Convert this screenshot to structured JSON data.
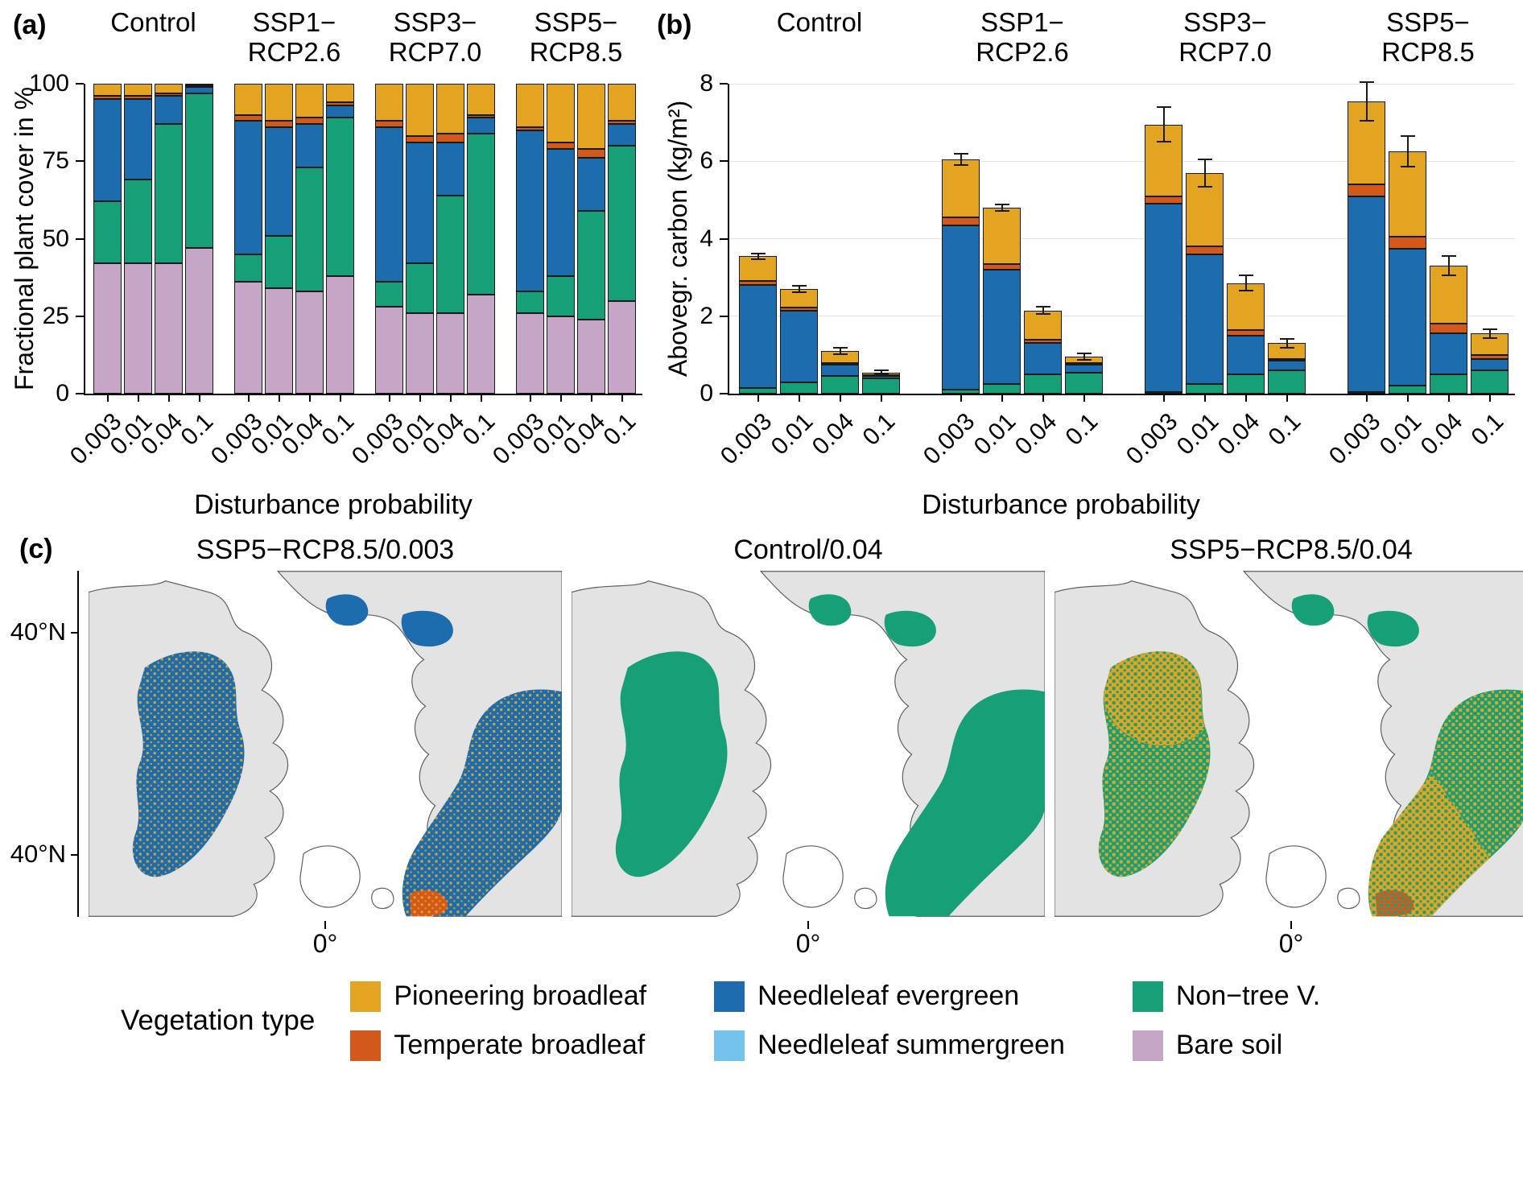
{
  "panels": {
    "a": {
      "tag": "(a)"
    },
    "b": {
      "tag": "(b)"
    },
    "c": {
      "tag": "(c)",
      "axis": {
        "y_ticks": [
          "40°N",
          "40°N"
        ],
        "x_tick": "0°"
      },
      "maps": [
        {
          "title": "SSP5−RCP8.5/0.003",
          "regions": [
            {
              "region": "na",
              "key": "needleleaf_evergreen"
            },
            {
              "region": "eu",
              "key": "needleleaf_evergreen"
            },
            {
              "region": "isl1",
              "key": "needleleaf_evergreen"
            },
            {
              "region": "isl2",
              "key": "needleleaf_evergreen"
            },
            {
              "region": "euro_patch",
              "key": "temperate_broadleaf"
            }
          ],
          "speckles": [
            {
              "region": "na",
              "key": "pioneering_broadleaf",
              "density": 0.2
            },
            {
              "region": "eu",
              "key": "pioneering_broadleaf",
              "density": 0.2
            }
          ]
        },
        {
          "title": "Control/0.04",
          "regions": [
            {
              "region": "na",
              "key": "non_tree_v"
            },
            {
              "region": "eu",
              "key": "non_tree_v"
            },
            {
              "region": "isl1",
              "key": "non_tree_v"
            },
            {
              "region": "isl2",
              "key": "non_tree_v"
            }
          ],
          "speckles": []
        },
        {
          "title": "SSP5−RCP8.5/0.04",
          "regions": [
            {
              "region": "na",
              "key": "non_tree_v"
            },
            {
              "region": "eu",
              "key": "non_tree_v"
            },
            {
              "region": "na_top",
              "key": "pioneering_broadleaf"
            },
            {
              "region": "eu_south",
              "key": "pioneering_broadleaf"
            },
            {
              "region": "isl1",
              "key": "non_tree_v"
            },
            {
              "region": "isl2",
              "key": "non_tree_v"
            },
            {
              "region": "euro_patch",
              "key": "temperate_broadleaf"
            }
          ],
          "speckles": [
            {
              "region": "na",
              "key": "pioneering_broadleaf",
              "density": 0.45
            },
            {
              "region": "eu",
              "key": "pioneering_broadleaf",
              "density": 0.45
            },
            {
              "region": "na_top",
              "key": "non_tree_v",
              "density": 0.3
            },
            {
              "region": "eu_south",
              "key": "non_tree_v",
              "density": 0.3
            }
          ]
        }
      ]
    }
  },
  "legend": {
    "title": "Vegetation type",
    "items": [
      {
        "key": "pioneering_broadleaf",
        "label": "Pioneering broadleaf",
        "color": "#E3A422"
      },
      {
        "key": "temperate_broadleaf",
        "label": "Temperate broadleaf",
        "color": "#D2591B"
      },
      {
        "key": "needleleaf_evergreen",
        "label": "Needleleaf evergreen",
        "color": "#1D6CAE"
      },
      {
        "key": "needleleaf_summergreen",
        "label": "Needleleaf summergreen",
        "color": "#74C3EC"
      },
      {
        "key": "non_tree_v",
        "label": "Non−tree V.",
        "color": "#17A077"
      },
      {
        "key": "bare_soil",
        "label": "Bare soil",
        "color": "#C6A6C7"
      }
    ]
  },
  "chart_data": [
    {
      "id": "a",
      "type": "bar",
      "title": "",
      "ylabel": "Fractional plant cover in %",
      "xlabel": "Disturbance probability",
      "ylim": [
        0,
        100
      ],
      "yticks": [
        0,
        25,
        50,
        75,
        100
      ],
      "grid": false,
      "stack_order": [
        "bare_soil",
        "non_tree_v",
        "needleleaf_evergreen",
        "temperate_broadleaf",
        "pioneering_broadleaf"
      ],
      "categories": [
        "0.003",
        "0.01",
        "0.04",
        "0.1"
      ],
      "groups": [
        {
          "name": "Control",
          "label_lines": [
            "Control"
          ],
          "bars": [
            [
              42,
              20,
              33,
              1,
              4
            ],
            [
              42,
              27,
              26,
              1,
              4
            ],
            [
              42,
              45,
              9,
              1,
              3
            ],
            [
              47,
              50,
              2,
              0.5,
              0.5
            ]
          ]
        },
        {
          "name": "SSP1−RCP2.6",
          "label_lines": [
            "SSP1−",
            "RCP2.6"
          ],
          "bars": [
            [
              36,
              9,
              43,
              2,
              10
            ],
            [
              34,
              17,
              35,
              2,
              12
            ],
            [
              33,
              40,
              14,
              2,
              11
            ],
            [
              38,
              51,
              4,
              1,
              6
            ]
          ]
        },
        {
          "name": "SSP3−RCP7.0",
          "label_lines": [
            "SSP3−",
            "RCP7.0"
          ],
          "bars": [
            [
              28,
              8,
              50,
              2,
              12
            ],
            [
              26,
              16,
              39,
              2,
              17
            ],
            [
              26,
              38,
              17,
              3,
              16
            ],
            [
              32,
              52,
              5,
              1,
              10
            ]
          ]
        },
        {
          "name": "SSP5−RCP8.5",
          "label_lines": [
            "SSP5−",
            "RCP8.5"
          ],
          "bars": [
            [
              26,
              7,
              52,
              1,
              14
            ],
            [
              25,
              13,
              41,
              2,
              19
            ],
            [
              24,
              35,
              17,
              3,
              21
            ],
            [
              30,
              50,
              7,
              1,
              12
            ]
          ]
        }
      ]
    },
    {
      "id": "b",
      "type": "bar",
      "title": "",
      "ylabel": "Abovegr. carbon (kg/m²)",
      "xlabel": "Disturbance probability",
      "ylim": [
        0,
        8
      ],
      "yticks": [
        0,
        2,
        4,
        6,
        8
      ],
      "grid": true,
      "stack_order": [
        "non_tree_v",
        "needleleaf_evergreen",
        "temperate_broadleaf",
        "pioneering_broadleaf"
      ],
      "categories": [
        "0.003",
        "0.01",
        "0.04",
        "0.1"
      ],
      "groups": [
        {
          "name": "Control",
          "label_lines": [
            "Control"
          ],
          "bars": [
            [
              0.15,
              2.65,
              0.1,
              0.65
            ],
            [
              0.3,
              1.85,
              0.08,
              0.47
            ],
            [
              0.45,
              0.3,
              0.05,
              0.3
            ],
            [
              0.4,
              0.06,
              0.02,
              0.07
            ]
          ],
          "errors": [
            0.07,
            0.08,
            0.08,
            0.05
          ]
        },
        {
          "name": "SSP1−RCP2.6",
          "label_lines": [
            "SSP1−",
            "RCP2.6"
          ],
          "bars": [
            [
              0.1,
              4.25,
              0.2,
              1.5
            ],
            [
              0.25,
              2.95,
              0.15,
              1.45
            ],
            [
              0.5,
              0.8,
              0.1,
              0.75
            ],
            [
              0.55,
              0.2,
              0.03,
              0.17
            ]
          ],
          "errors": [
            0.15,
            0.08,
            0.1,
            0.08
          ]
        },
        {
          "name": "SSP3−RCP7.0",
          "label_lines": [
            "SSP3−",
            "RCP7.0"
          ],
          "bars": [
            [
              0.05,
              4.85,
              0.2,
              1.85
            ],
            [
              0.25,
              3.35,
              0.2,
              1.9
            ],
            [
              0.5,
              1.0,
              0.15,
              1.2
            ],
            [
              0.6,
              0.25,
              0.05,
              0.4
            ]
          ],
          "errors": [
            0.45,
            0.35,
            0.2,
            0.12
          ]
        },
        {
          "name": "SSP5−RCP8.5",
          "label_lines": [
            "SSP5−",
            "RCP8.5"
          ],
          "bars": [
            [
              0.05,
              5.05,
              0.3,
              2.15
            ],
            [
              0.2,
              3.55,
              0.3,
              2.2
            ],
            [
              0.5,
              1.05,
              0.25,
              1.5
            ],
            [
              0.6,
              0.3,
              0.1,
              0.55
            ]
          ],
          "errors": [
            0.5,
            0.4,
            0.25,
            0.12
          ]
        }
      ]
    }
  ]
}
